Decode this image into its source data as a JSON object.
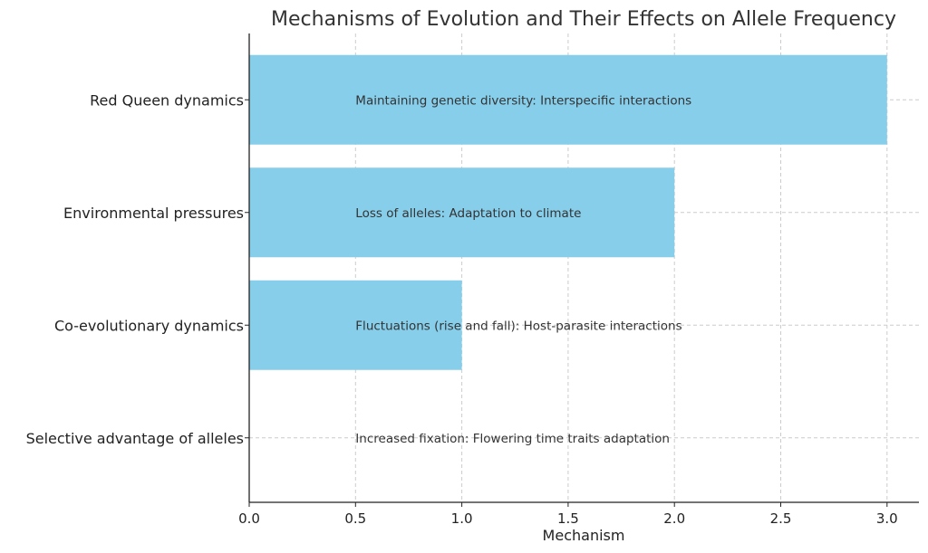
{
  "chart_data": {
    "type": "bar",
    "orientation": "horizontal",
    "title": "Mechanisms of Evolution and Their Effects on Allele Frequency",
    "xlabel": "Mechanism",
    "ylabel": "",
    "categories": [
      "Selective advantage of alleles",
      "Co-evolutionary dynamics",
      "Environmental pressures",
      "Red Queen dynamics"
    ],
    "values": [
      0,
      1,
      2,
      3
    ],
    "annotations": [
      "Increased fixation: Flowering time traits adaptation",
      "Fluctuations (rise and fall): Host-parasite interactions",
      "Loss of alleles: Adaptation to climate",
      "Maintaining genetic diversity: Interspecific interactions"
    ],
    "annotation_x": 0.5,
    "xlim": [
      0,
      3.15
    ],
    "xticks": [
      0.0,
      0.5,
      1.0,
      1.5,
      2.0,
      2.5,
      3.0
    ],
    "xtick_labels": [
      "0.0",
      "0.5",
      "1.0",
      "1.5",
      "2.0",
      "2.5",
      "3.0"
    ],
    "grid": true,
    "bar_color": "#87ceeb"
  }
}
